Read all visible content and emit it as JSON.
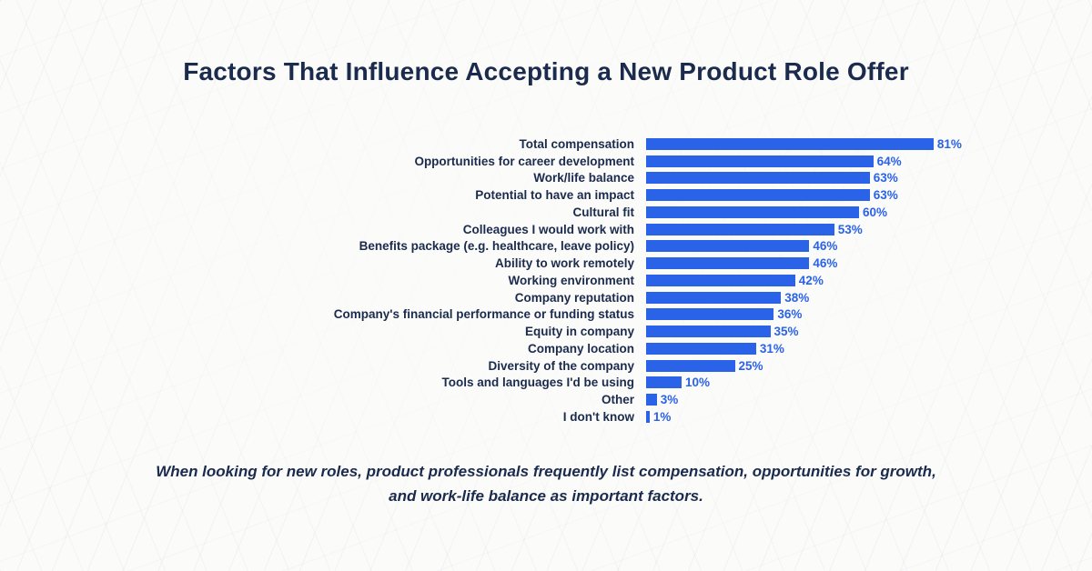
{
  "page": {
    "caption": "When looking for new roles, product professionals frequently list compensation, opportunities for growth, and work-life balance as important factors."
  },
  "colors": {
    "bar_blue": "#2a62e8",
    "text_navy": "#1b2b4d",
    "background": "#fbfbfa"
  },
  "chart_data": {
    "type": "bar",
    "orientation": "horizontal",
    "title": "Factors That Influence Accepting a New Product Role Offer",
    "categories": [
      "Total compensation",
      "Opportunities for career development",
      "Work/life balance",
      "Potential to have an impact",
      "Cultural fit",
      "Colleagues I would work with",
      "Benefits package (e.g. healthcare, leave policy)",
      "Ability to work remotely",
      "Working environment",
      "Company reputation",
      "Company's financial performance or funding status",
      "Equity in company",
      "Company location",
      "Diversity of the company",
      "Tools and languages I'd be using",
      "Other",
      "I don't know"
    ],
    "values": [
      81,
      64,
      63,
      63,
      60,
      53,
      46,
      46,
      42,
      38,
      36,
      35,
      31,
      25,
      10,
      3,
      1
    ],
    "value_suffix": "%",
    "xlabel": "",
    "ylabel": "",
    "xlim": [
      0,
      100
    ],
    "grid": false,
    "legend": false,
    "data_labels": true
  }
}
